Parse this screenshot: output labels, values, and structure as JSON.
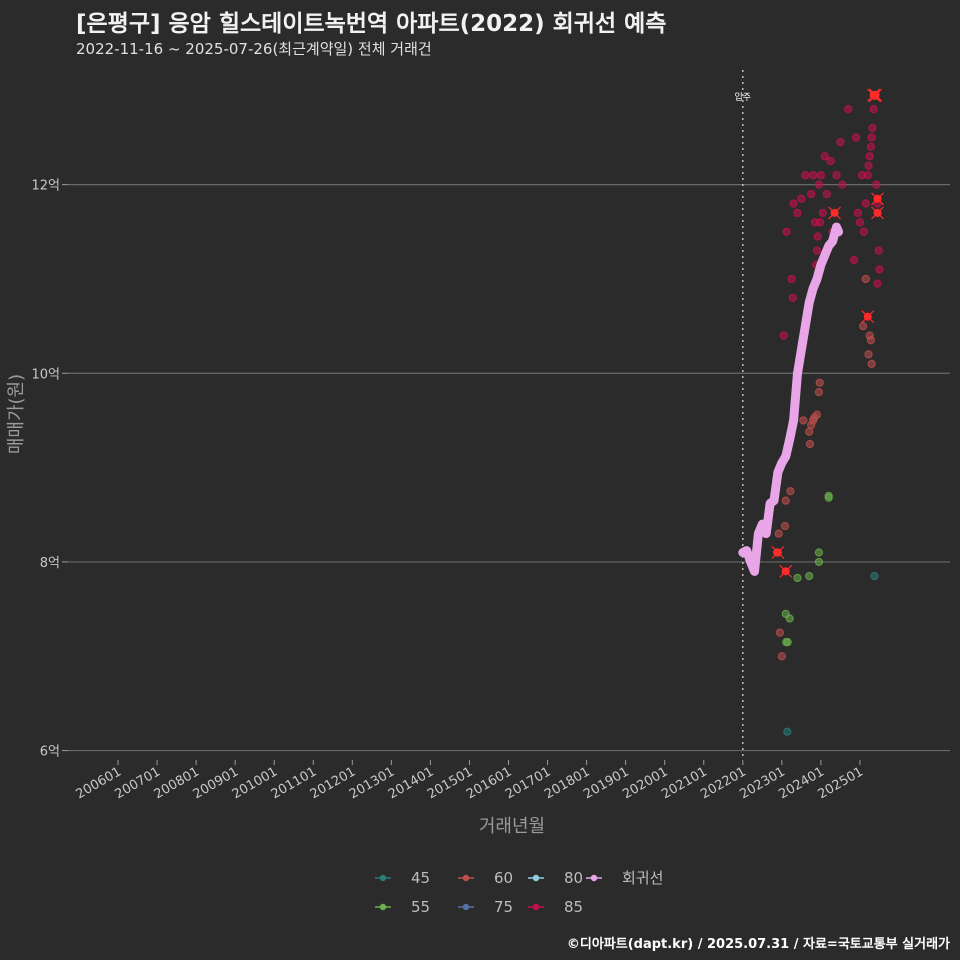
{
  "header": {
    "title": "[은평구] 응암 힐스테이트녹번역 아파트(2022) 회귀선 예측",
    "subtitle": "2022-11-16 ~ 2025-07-26(최근계약일) 전체 거래건"
  },
  "footer": {
    "caption": "©디아파트(dapt.kr) / 2025.07.31 / 자료=국토교통부 실거래가"
  },
  "chart_data": {
    "type": "scatter",
    "xlabel": "거래년월",
    "ylabel": "매매가(원)",
    "ylim": [
      5.9,
      13.3
    ],
    "y_ticks": [
      {
        "value": 6,
        "label": "6억"
      },
      {
        "value": 8,
        "label": "8억"
      },
      {
        "value": 10,
        "label": "10억"
      },
      {
        "value": 12,
        "label": "12억"
      }
    ],
    "x_tick_labels": [
      "200601",
      "200701",
      "200801",
      "200901",
      "201001",
      "201101",
      "201201",
      "201301",
      "201401",
      "201501",
      "201601",
      "201701",
      "201801",
      "201901",
      "202001",
      "202101",
      "202201",
      "202301",
      "202401",
      "202501"
    ],
    "grid": true,
    "legend_position": "bottom",
    "annotation": {
      "text": "입주",
      "x": 2022.0
    },
    "colors": {
      "45": "#2b7d78",
      "55": "#6ab04c",
      "60": "#c0504d",
      "75": "#5870a8",
      "80": "#8fd0e0",
      "85": "#c8104c",
      "regression": "#e8a6e8"
    },
    "legend": [
      {
        "key": "45",
        "label": "45"
      },
      {
        "key": "55",
        "label": "55"
      },
      {
        "key": "60",
        "label": "60"
      },
      {
        "key": "75",
        "label": "75"
      },
      {
        "key": "80",
        "label": "80"
      },
      {
        "key": "85",
        "label": "85"
      },
      {
        "key": "regression",
        "label": "회귀선"
      }
    ],
    "series": [
      {
        "name": "45",
        "points": [
          [
            2023.14,
            6.2
          ],
          [
            2025.37,
            7.85
          ]
        ]
      },
      {
        "name": "55",
        "points": [
          [
            2023.1,
            7.45
          ],
          [
            2023.11,
            7.15
          ],
          [
            2023.15,
            7.15
          ],
          [
            2023.2,
            7.4
          ],
          [
            2023.4,
            7.83
          ],
          [
            2023.7,
            7.85
          ],
          [
            2023.95,
            8.0
          ],
          [
            2023.95,
            8.1
          ],
          [
            2024.2,
            8.7
          ],
          [
            2024.2,
            8.68
          ]
        ]
      },
      {
        "name": "60",
        "points": [
          [
            2022.88,
            8.1
          ],
          [
            2022.92,
            8.3
          ],
          [
            2022.95,
            7.25
          ],
          [
            2023.0,
            7.0
          ],
          [
            2023.08,
            8.38
          ],
          [
            2023.1,
            8.65
          ],
          [
            2023.22,
            8.75
          ],
          [
            2023.55,
            9.5
          ],
          [
            2023.7,
            9.38
          ],
          [
            2023.72,
            9.25
          ],
          [
            2023.75,
            9.45
          ],
          [
            2023.8,
            9.5
          ],
          [
            2023.83,
            9.53
          ],
          [
            2023.9,
            9.56
          ],
          [
            2023.95,
            9.8
          ],
          [
            2023.97,
            9.9
          ],
          [
            2025.08,
            10.5
          ],
          [
            2025.22,
            10.2
          ],
          [
            2025.25,
            10.4
          ],
          [
            2025.28,
            10.35
          ],
          [
            2025.3,
            10.1
          ],
          [
            2025.15,
            11.0
          ]
        ]
      },
      {
        "name": "85",
        "points": [
          [
            2023.05,
            10.4
          ],
          [
            2023.12,
            11.5
          ],
          [
            2023.25,
            11.0
          ],
          [
            2023.28,
            10.8
          ],
          [
            2023.3,
            11.8
          ],
          [
            2023.4,
            11.7
          ],
          [
            2023.5,
            11.85
          ],
          [
            2023.6,
            12.1
          ],
          [
            2023.75,
            11.9
          ],
          [
            2023.8,
            12.1
          ],
          [
            2023.85,
            11.6
          ],
          [
            2023.88,
            11.15
          ],
          [
            2023.9,
            11.3
          ],
          [
            2023.92,
            11.45
          ],
          [
            2023.95,
            12.0
          ],
          [
            2023.98,
            11.6
          ],
          [
            2024.0,
            12.1
          ],
          [
            2024.05,
            11.7
          ],
          [
            2024.1,
            12.3
          ],
          [
            2024.15,
            11.9
          ],
          [
            2024.25,
            12.25
          ],
          [
            2024.3,
            11.5
          ],
          [
            2024.4,
            12.1
          ],
          [
            2024.5,
            12.45
          ],
          [
            2024.55,
            12.0
          ],
          [
            2024.7,
            12.8
          ],
          [
            2024.85,
            11.2
          ],
          [
            2024.9,
            12.5
          ],
          [
            2024.95,
            11.7
          ],
          [
            2025.0,
            11.6
          ],
          [
            2025.05,
            12.1
          ],
          [
            2025.1,
            11.5
          ],
          [
            2025.15,
            11.8
          ],
          [
            2025.2,
            12.1
          ],
          [
            2025.22,
            12.2
          ],
          [
            2025.25,
            12.3
          ],
          [
            2025.28,
            12.4
          ],
          [
            2025.3,
            12.5
          ],
          [
            2025.32,
            12.6
          ],
          [
            2025.35,
            12.8
          ],
          [
            2025.37,
            12.95
          ],
          [
            2025.4,
            12.95
          ],
          [
            2025.42,
            12.0
          ],
          [
            2025.45,
            11.8
          ],
          [
            2025.48,
            11.3
          ],
          [
            2025.5,
            11.1
          ],
          [
            2025.45,
            10.95
          ]
        ]
      }
    ],
    "highlights": [
      [
        2022.9,
        8.1
      ],
      [
        2023.1,
        7.9
      ],
      [
        2024.35,
        11.7
      ],
      [
        2025.2,
        10.6
      ],
      [
        2025.45,
        11.85
      ],
      [
        2025.45,
        11.7
      ],
      [
        2025.35,
        12.95
      ],
      [
        2025.4,
        12.95
      ],
      [
        2025.38,
        12.94
      ]
    ],
    "regression_line": [
      [
        2022.0,
        8.1
      ],
      [
        2022.1,
        8.12
      ],
      [
        2022.2,
        8.0
      ],
      [
        2022.3,
        7.9
      ],
      [
        2022.4,
        8.3
      ],
      [
        2022.5,
        8.4
      ],
      [
        2022.6,
        8.3
      ],
      [
        2022.7,
        8.62
      ],
      [
        2022.8,
        8.65
      ],
      [
        2022.9,
        8.95
      ],
      [
        2023.0,
        9.05
      ],
      [
        2023.1,
        9.12
      ],
      [
        2023.2,
        9.3
      ],
      [
        2023.3,
        9.5
      ],
      [
        2023.4,
        10.0
      ],
      [
        2023.5,
        10.25
      ],
      [
        2023.6,
        10.5
      ],
      [
        2023.7,
        10.75
      ],
      [
        2023.8,
        10.9
      ],
      [
        2023.9,
        11.0
      ],
      [
        2024.0,
        11.15
      ],
      [
        2024.1,
        11.25
      ],
      [
        2024.2,
        11.35
      ],
      [
        2024.3,
        11.4
      ],
      [
        2024.4,
        11.55
      ],
      [
        2024.45,
        11.5
      ]
    ]
  }
}
